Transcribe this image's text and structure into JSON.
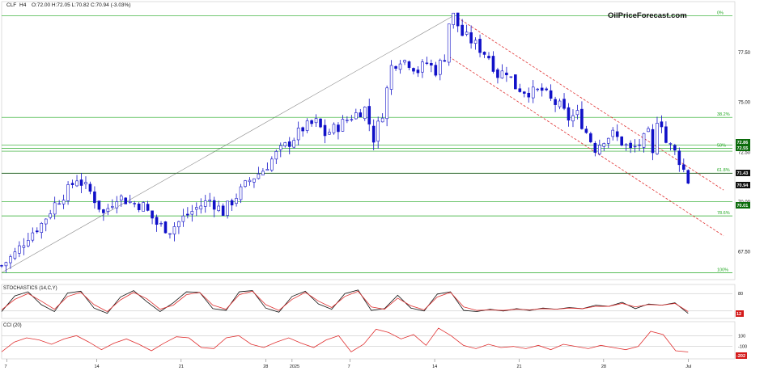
{
  "header": {
    "symbol": "CLF",
    "timeframe": "H4",
    "ohlc_text": "O:72.00  H:72.05  L:70.82  C:70.94  (-3.03%)"
  },
  "watermark": "OilPriceForecast.com",
  "colors": {
    "candle": "#1010c8",
    "fib_line": "#22a822",
    "fib_label": "#22a822",
    "channel": "#e03030",
    "trendline": "#888888",
    "stoch_k": "#111111",
    "stoch_d": "#e03030",
    "cci": "#e03030",
    "label_green_bg": "#0b6b0b",
    "label_black_bg": "#111111",
    "label_red_bg": "#d41a1a"
  },
  "chart_data": [
    {
      "type": "candlestick",
      "title": "CLF H4",
      "x_tick_labels": [
        "7",
        "14",
        "21",
        "28",
        "2025",
        "7",
        "14",
        "21",
        "28",
        "Jul"
      ],
      "y_ticks": [
        67.5,
        70.0,
        72.5,
        75.0,
        77.5
      ],
      "y_tick_labels": [
        "67.50",
        "70.00",
        "72.50",
        "75.00",
        "77.50"
      ],
      "ylim": [
        66.1,
        79.9
      ],
      "fib_levels": [
        {
          "label": "0%",
          "value": 79.35
        },
        {
          "label": "38.2%",
          "value": 74.25
        },
        {
          "label": "50%",
          "value": 72.7
        },
        {
          "label": "61.8%",
          "value": 71.45
        },
        {
          "label": "78.6%",
          "value": 69.3
        },
        {
          "label": "100%",
          "value": 66.45
        }
      ],
      "horizontal_lines": [
        72.86,
        72.55,
        70.01
      ],
      "price_labels": [
        {
          "text": "72.86",
          "style": "green"
        },
        {
          "text": "72.55",
          "style": "green"
        },
        {
          "text": "71.43",
          "style": "black"
        },
        {
          "text": "70.94",
          "style": "black"
        },
        {
          "text": "70.01",
          "style": "green"
        }
      ],
      "last_close": 70.94,
      "price_path": [
        [
          0,
          66.8
        ],
        [
          3,
          67.4
        ],
        [
          6,
          68.3
        ],
        [
          9,
          68.9
        ],
        [
          12,
          69.9
        ],
        [
          15,
          70.6
        ],
        [
          17,
          71.2
        ],
        [
          20,
          70.5
        ],
        [
          23,
          69.4
        ],
        [
          26,
          70.3
        ],
        [
          29,
          70.0
        ],
        [
          32,
          69.8
        ],
        [
          35,
          68.9
        ],
        [
          38,
          68.6
        ],
        [
          41,
          69.2
        ],
        [
          44,
          69.7
        ],
        [
          47,
          70.1
        ],
        [
          50,
          69.5
        ],
        [
          53,
          70.3
        ],
        [
          56,
          71.1
        ],
        [
          59,
          71.6
        ],
        [
          62,
          72.4
        ],
        [
          65,
          73.0
        ],
        [
          68,
          73.7
        ],
        [
          71,
          74.0
        ],
        [
          73,
          73.4
        ],
        [
          76,
          73.8
        ],
        [
          79,
          74.3
        ],
        [
          82,
          74.7
        ],
        [
          84,
          73.2
        ],
        [
          86,
          74.5
        ],
        [
          88,
          76.8
        ],
        [
          90,
          77.2
        ],
        [
          92,
          77.0
        ],
        [
          94,
          76.6
        ],
        [
          96,
          77.0
        ],
        [
          98,
          76.6
        ],
        [
          100,
          77.3
        ],
        [
          101,
          79.0
        ],
        [
          102,
          79.35
        ],
        [
          104,
          78.4
        ],
        [
          106,
          78.1
        ],
        [
          108,
          77.7
        ],
        [
          110,
          77.3
        ],
        [
          112,
          76.4
        ],
        [
          114,
          76.6
        ],
        [
          116,
          75.8
        ],
        [
          118,
          75.6
        ],
        [
          120,
          75.5
        ],
        [
          122,
          75.6
        ],
        [
          124,
          75.1
        ],
        [
          126,
          74.8
        ],
        [
          128,
          74.2
        ],
        [
          130,
          74.4
        ],
        [
          132,
          73.5
        ],
        [
          134,
          72.7
        ],
        [
          136,
          73.2
        ],
        [
          138,
          73.4
        ],
        [
          140,
          73.0
        ],
        [
          142,
          72.6
        ],
        [
          144,
          72.9
        ],
        [
          146,
          73.4
        ],
        [
          147,
          72.3
        ],
        [
          148,
          74.2
        ],
        [
          149,
          74.0
        ],
        [
          150,
          73.0
        ],
        [
          151,
          72.8
        ],
        [
          152,
          72.5
        ],
        [
          153,
          72.1
        ],
        [
          154,
          71.6
        ],
        [
          155,
          70.94
        ]
      ],
      "fib_anchor": {
        "from": [
          0,
          66.45
        ],
        "to": [
          102,
          79.35
        ]
      },
      "channel": {
        "upper": {
          "from": [
            103,
            79.25
          ],
          "to": [
            163,
            70.6
          ]
        },
        "lower": {
          "from": [
            101,
            77.3
          ],
          "to": [
            163,
            68.3
          ]
        }
      }
    },
    {
      "type": "line",
      "title": "STOCHASTICS (14,C,Y)",
      "ylim": [
        0,
        100
      ],
      "y_ticks": [
        80
      ],
      "y_tick_labels": [
        "80"
      ],
      "series": [
        {
          "name": "%K",
          "values": [
            18,
            72,
            86,
            42,
            18,
            82,
            88,
            30,
            12,
            68,
            90,
            52,
            18,
            48,
            86,
            84,
            28,
            22,
            86,
            90,
            30,
            16,
            70,
            88,
            44,
            26,
            80,
            92,
            22,
            28,
            74,
            30,
            20,
            78,
            86,
            22,
            18,
            26,
            20,
            28,
            22,
            30,
            26,
            32,
            28,
            40,
            36,
            50,
            28,
            44,
            40,
            48,
            12
          ]
        },
        {
          "name": "%D",
          "values": [
            24,
            60,
            80,
            54,
            26,
            70,
            84,
            42,
            18,
            58,
            84,
            62,
            26,
            40,
            76,
            84,
            40,
            26,
            76,
            88,
            42,
            22,
            60,
            84,
            54,
            32,
            70,
            88,
            34,
            26,
            64,
            38,
            24,
            68,
            84,
            34,
            22,
            24,
            22,
            26,
            24,
            28,
            26,
            30,
            28,
            36,
            36,
            46,
            34,
            42,
            40,
            46,
            18
          ]
        }
      ],
      "price_labels": [
        {
          "text": "12",
          "style": "red"
        }
      ]
    },
    {
      "type": "line",
      "title": "CCI (20)",
      "ylim": [
        -300,
        300
      ],
      "y_ticks": [
        100,
        -100
      ],
      "y_tick_labels": [
        "100",
        "-100"
      ],
      "series": [
        {
          "name": "CCI",
          "values": [
            -200,
            -20,
            60,
            20,
            -60,
            40,
            100,
            -20,
            -160,
            -40,
            40,
            -60,
            -180,
            -40,
            80,
            60,
            -120,
            -140,
            60,
            100,
            -60,
            -120,
            -20,
            60,
            -40,
            -120,
            20,
            100,
            -200,
            -60,
            220,
            160,
            40,
            120,
            -80,
            240,
            100,
            -80,
            -140,
            -60,
            -120,
            -100,
            -140,
            -80,
            -160,
            -60,
            -100,
            -140,
            -80,
            -120,
            -160,
            -100,
            180,
            120,
            -180,
            -202
          ]
        }
      ],
      "price_labels": [
        {
          "text": "-202",
          "style": "red"
        }
      ]
    }
  ]
}
